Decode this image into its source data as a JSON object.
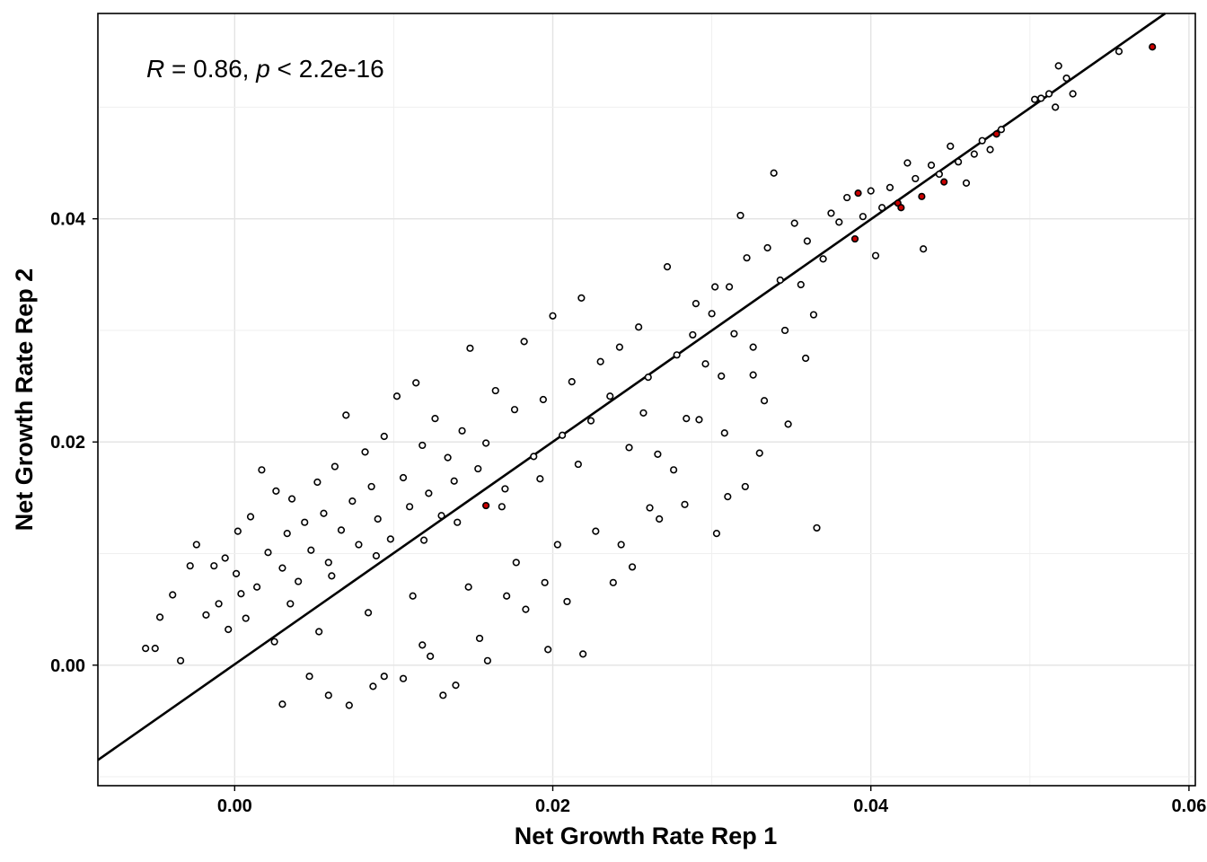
{
  "chart_data": {
    "type": "scatter",
    "xlabel": "Net Growth Rate Rep 1",
    "ylabel": "Net Growth Rate Rep 2",
    "xlim": [
      -0.0086,
      0.0604
    ],
    "ylim": [
      -0.0108,
      0.0584
    ],
    "x_ticks": [
      0.0,
      0.02,
      0.04,
      0.06
    ],
    "x_tick_labels": [
      "0.00",
      "0.02",
      "0.04",
      "0.06"
    ],
    "y_ticks": [
      0.0,
      0.02,
      0.04
    ],
    "y_tick_labels": [
      "0.00",
      "0.02",
      "0.04"
    ],
    "grid": true,
    "annotation": {
      "r_symbol": "R",
      "r_value": " = 0.86, ",
      "p_symbol": "p",
      "p_value": " < 2.2e-16"
    },
    "fit_line": {
      "x": [
        -0.0086,
        0.0585
      ],
      "y": [
        -0.0085,
        0.0584
      ]
    },
    "point_style": {
      "fill": "#ffffff",
      "stroke": "#000000",
      "highlight_fill": "#cc0000"
    },
    "highlighted_points": [
      {
        "x": 0.0158,
        "y": 0.0143
      },
      {
        "x": 0.0392,
        "y": 0.0423
      },
      {
        "x": 0.039,
        "y": 0.0382
      },
      {
        "x": 0.0417,
        "y": 0.0414
      },
      {
        "x": 0.0419,
        "y": 0.041
      },
      {
        "x": 0.0432,
        "y": 0.042
      },
      {
        "x": 0.0446,
        "y": 0.0433
      },
      {
        "x": 0.0479,
        "y": 0.0476
      },
      {
        "x": 0.0577,
        "y": 0.0554
      }
    ],
    "points": [
      {
        "x": -0.0056,
        "y": 0.0015
      },
      {
        "x": -0.005,
        "y": 0.0015
      },
      {
        "x": -0.0047,
        "y": 0.0043
      },
      {
        "x": -0.0039,
        "y": 0.0063
      },
      {
        "x": -0.0034,
        "y": 0.0004
      },
      {
        "x": -0.0028,
        "y": 0.0089
      },
      {
        "x": -0.0024,
        "y": 0.0108
      },
      {
        "x": -0.0018,
        "y": 0.0045
      },
      {
        "x": -0.0013,
        "y": 0.0089
      },
      {
        "x": -0.001,
        "y": 0.0055
      },
      {
        "x": -0.0006,
        "y": 0.0096
      },
      {
        "x": -0.0004,
        "y": 0.0032
      },
      {
        "x": 0.0001,
        "y": 0.0082
      },
      {
        "x": 0.0002,
        "y": 0.012
      },
      {
        "x": 0.0004,
        "y": 0.0064
      },
      {
        "x": 0.0007,
        "y": 0.0042
      },
      {
        "x": 0.001,
        "y": 0.0133
      },
      {
        "x": 0.0014,
        "y": 0.007
      },
      {
        "x": 0.0017,
        "y": 0.0175
      },
      {
        "x": 0.0021,
        "y": 0.0101
      },
      {
        "x": 0.0026,
        "y": 0.0156
      },
      {
        "x": 0.003,
        "y": 0.0087
      },
      {
        "x": 0.0033,
        "y": 0.0118
      },
      {
        "x": 0.0036,
        "y": 0.0149
      },
      {
        "x": 0.004,
        "y": 0.0075
      },
      {
        "x": 0.0044,
        "y": 0.0128
      },
      {
        "x": 0.0048,
        "y": 0.0103
      },
      {
        "x": 0.0052,
        "y": 0.0164
      },
      {
        "x": 0.0056,
        "y": 0.0136
      },
      {
        "x": 0.0059,
        "y": 0.0092
      },
      {
        "x": 0.0063,
        "y": 0.0178
      },
      {
        "x": 0.0067,
        "y": 0.0121
      },
      {
        "x": 0.007,
        "y": 0.0224
      },
      {
        "x": 0.0074,
        "y": 0.0147
      },
      {
        "x": 0.0078,
        "y": 0.0108
      },
      {
        "x": 0.0082,
        "y": 0.0191
      },
      {
        "x": 0.0086,
        "y": 0.016
      },
      {
        "x": 0.009,
        "y": 0.0131
      },
      {
        "x": 0.0094,
        "y": 0.0205
      },
      {
        "x": 0.0098,
        "y": 0.0113
      },
      {
        "x": 0.0102,
        "y": 0.0241
      },
      {
        "x": 0.0106,
        "y": 0.0168
      },
      {
        "x": 0.011,
        "y": 0.0142
      },
      {
        "x": 0.0114,
        "y": 0.0253
      },
      {
        "x": 0.0118,
        "y": 0.0197
      },
      {
        "x": 0.0122,
        "y": 0.0154
      },
      {
        "x": 0.0126,
        "y": 0.0221
      },
      {
        "x": 0.013,
        "y": 0.0134
      },
      {
        "x": 0.0134,
        "y": 0.0186
      },
      {
        "x": 0.0138,
        "y": 0.0165
      },
      {
        "x": 0.0143,
        "y": 0.021
      },
      {
        "x": 0.0148,
        "y": 0.0284
      },
      {
        "x": 0.0153,
        "y": 0.0176
      },
      {
        "x": 0.0158,
        "y": 0.0199
      },
      {
        "x": 0.0164,
        "y": 0.0246
      },
      {
        "x": 0.017,
        "y": 0.0158
      },
      {
        "x": 0.0176,
        "y": 0.0229
      },
      {
        "x": 0.0182,
        "y": 0.029
      },
      {
        "x": 0.0188,
        "y": 0.0187
      },
      {
        "x": 0.0194,
        "y": 0.0238
      },
      {
        "x": 0.02,
        "y": 0.0313
      },
      {
        "x": 0.0206,
        "y": 0.0206
      },
      {
        "x": 0.0212,
        "y": 0.0254
      },
      {
        "x": 0.0218,
        "y": 0.0329
      },
      {
        "x": 0.0224,
        "y": 0.0219
      },
      {
        "x": 0.023,
        "y": 0.0272
      },
      {
        "x": 0.0236,
        "y": 0.0241
      },
      {
        "x": 0.0242,
        "y": 0.0285
      },
      {
        "x": 0.0248,
        "y": 0.0195
      },
      {
        "x": 0.0254,
        "y": 0.0303
      },
      {
        "x": 0.026,
        "y": 0.0258
      },
      {
        "x": 0.0266,
        "y": 0.0189
      },
      {
        "x": 0.0272,
        "y": 0.0357
      },
      {
        "x": 0.0278,
        "y": 0.0278
      },
      {
        "x": 0.0284,
        "y": 0.0221
      },
      {
        "x": 0.029,
        "y": 0.0324
      },
      {
        "x": 0.0296,
        "y": 0.027
      },
      {
        "x": 0.0302,
        "y": 0.0339
      },
      {
        "x": 0.0308,
        "y": 0.0208
      },
      {
        "x": 0.0314,
        "y": 0.0297
      },
      {
        "x": 0.0318,
        "y": 0.0403
      },
      {
        "x": 0.0322,
        "y": 0.0365
      },
      {
        "x": 0.0326,
        "y": 0.026
      },
      {
        "x": 0.033,
        "y": 0.019
      },
      {
        "x": 0.0335,
        "y": 0.0374
      },
      {
        "x": 0.0339,
        "y": 0.0441
      },
      {
        "x": 0.0343,
        "y": 0.0345
      },
      {
        "x": 0.0348,
        "y": 0.0216
      },
      {
        "x": 0.0352,
        "y": 0.0396
      },
      {
        "x": 0.0356,
        "y": 0.0341
      },
      {
        "x": 0.036,
        "y": 0.038
      },
      {
        "x": 0.0364,
        "y": 0.0314
      },
      {
        "x": 0.0366,
        "y": 0.0123
      },
      {
        "x": 0.037,
        "y": 0.0364
      },
      {
        "x": 0.0375,
        "y": 0.0405
      },
      {
        "x": 0.038,
        "y": 0.0397
      },
      {
        "x": 0.0385,
        "y": 0.0419
      },
      {
        "x": 0.0395,
        "y": 0.0402
      },
      {
        "x": 0.04,
        "y": 0.0425
      },
      {
        "x": 0.0403,
        "y": 0.0367
      },
      {
        "x": 0.0407,
        "y": 0.041
      },
      {
        "x": 0.0412,
        "y": 0.0428
      },
      {
        "x": 0.0423,
        "y": 0.045
      },
      {
        "x": 0.0428,
        "y": 0.0436
      },
      {
        "x": 0.0433,
        "y": 0.0373
      },
      {
        "x": 0.0438,
        "y": 0.0448
      },
      {
        "x": 0.0443,
        "y": 0.044
      },
      {
        "x": 0.045,
        "y": 0.0465
      },
      {
        "x": 0.0455,
        "y": 0.0451
      },
      {
        "x": 0.046,
        "y": 0.0432
      },
      {
        "x": 0.0465,
        "y": 0.0458
      },
      {
        "x": 0.047,
        "y": 0.047
      },
      {
        "x": 0.0475,
        "y": 0.0462
      },
      {
        "x": 0.0482,
        "y": 0.048
      },
      {
        "x": 0.0503,
        "y": 0.0507
      },
      {
        "x": 0.0507,
        "y": 0.0508
      },
      {
        "x": 0.0512,
        "y": 0.0512
      },
      {
        "x": 0.0516,
        "y": 0.05
      },
      {
        "x": 0.0518,
        "y": 0.0537
      },
      {
        "x": 0.0523,
        "y": 0.0526
      },
      {
        "x": 0.0527,
        "y": 0.0512
      },
      {
        "x": 0.0556,
        "y": 0.055
      },
      {
        "x": 0.0035,
        "y": 0.0055
      },
      {
        "x": 0.0061,
        "y": 0.008
      },
      {
        "x": 0.0089,
        "y": 0.0098
      },
      {
        "x": 0.0119,
        "y": 0.0112
      },
      {
        "x": 0.014,
        "y": 0.0128
      },
      {
        "x": 0.0168,
        "y": 0.0142
      },
      {
        "x": 0.0192,
        "y": 0.0167
      },
      {
        "x": 0.0216,
        "y": 0.018
      },
      {
        "x": 0.0025,
        "y": 0.0021
      },
      {
        "x": 0.0053,
        "y": 0.003
      },
      {
        "x": 0.0084,
        "y": 0.0047
      },
      {
        "x": 0.0112,
        "y": 0.0062
      },
      {
        "x": 0.0147,
        "y": 0.007
      },
      {
        "x": 0.0177,
        "y": 0.0092
      },
      {
        "x": 0.0203,
        "y": 0.0108
      },
      {
        "x": 0.0227,
        "y": 0.012
      },
      {
        "x": 0.003,
        "y": -0.0035
      },
      {
        "x": 0.0059,
        "y": -0.0027
      },
      {
        "x": 0.0094,
        "y": -0.001
      },
      {
        "x": 0.0123,
        "y": 0.0008
      },
      {
        "x": 0.0154,
        "y": 0.0024
      },
      {
        "x": 0.0183,
        "y": 0.005
      },
      {
        "x": 0.0209,
        "y": 0.0057
      },
      {
        "x": 0.0238,
        "y": 0.0074
      },
      {
        "x": 0.0087,
        "y": -0.0019
      },
      {
        "x": 0.0131,
        "y": -0.0027
      },
      {
        "x": 0.0159,
        "y": 0.0004
      },
      {
        "x": 0.0197,
        "y": 0.0014
      },
      {
        "x": 0.0219,
        "y": 0.001
      },
      {
        "x": 0.0139,
        "y": -0.0018
      },
      {
        "x": 0.0072,
        "y": -0.0036
      },
      {
        "x": 0.0106,
        "y": -0.0012
      },
      {
        "x": 0.0047,
        "y": -0.001
      },
      {
        "x": 0.0118,
        "y": 0.0018
      },
      {
        "x": 0.0171,
        "y": 0.0062
      },
      {
        "x": 0.0195,
        "y": 0.0074
      },
      {
        "x": 0.0243,
        "y": 0.0108
      },
      {
        "x": 0.0261,
        "y": 0.0141
      },
      {
        "x": 0.0283,
        "y": 0.0144
      },
      {
        "x": 0.0303,
        "y": 0.0118
      },
      {
        "x": 0.031,
        "y": 0.0151
      },
      {
        "x": 0.0321,
        "y": 0.016
      },
      {
        "x": 0.025,
        "y": 0.0088
      },
      {
        "x": 0.0267,
        "y": 0.0131
      },
      {
        "x": 0.0257,
        "y": 0.0226
      },
      {
        "x": 0.0276,
        "y": 0.0175
      },
      {
        "x": 0.0292,
        "y": 0.022
      },
      {
        "x": 0.0306,
        "y": 0.0259
      },
      {
        "x": 0.0326,
        "y": 0.0285
      },
      {
        "x": 0.0333,
        "y": 0.0237
      },
      {
        "x": 0.0346,
        "y": 0.03
      },
      {
        "x": 0.0359,
        "y": 0.0275
      },
      {
        "x": 0.0288,
        "y": 0.0296
      },
      {
        "x": 0.03,
        "y": 0.0315
      },
      {
        "x": 0.0311,
        "y": 0.0339
      }
    ]
  }
}
